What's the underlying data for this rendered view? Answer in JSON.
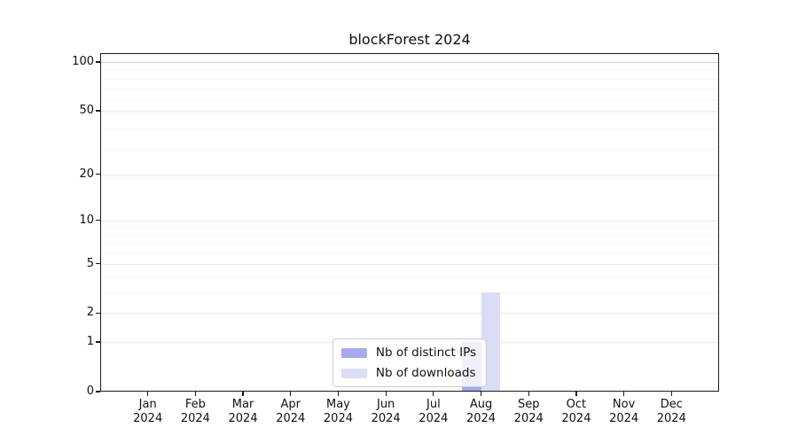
{
  "chart_data": {
    "type": "bar",
    "title": "blockForest 2024",
    "x": {
      "categories": [
        "Jan",
        "Feb",
        "Mar",
        "Apr",
        "May",
        "Jun",
        "Jul",
        "Aug",
        "Sep",
        "Oct",
        "Nov",
        "Dec"
      ],
      "year": "2024"
    },
    "series": [
      {
        "name": "Nb of distinct IPs",
        "color": "#a9a9ef",
        "values": [
          0,
          0,
          0,
          0,
          0,
          0,
          0,
          1,
          0,
          0,
          0,
          0
        ]
      },
      {
        "name": "Nb of downloads",
        "color": "#dcdcf7",
        "values": [
          0,
          0,
          0,
          0,
          0,
          0,
          0,
          3,
          0,
          0,
          0,
          0
        ]
      }
    ],
    "yaxis": {
      "scale": "log1p",
      "ticks": [
        0,
        1,
        2,
        5,
        10,
        20,
        50,
        100
      ],
      "minor_grid_at": [
        1,
        2,
        3,
        4,
        5,
        6,
        7,
        8,
        9,
        19,
        29,
        39,
        49,
        59,
        69,
        79,
        89
      ],
      "max": 113.3
    },
    "legend": {
      "position": "lower center",
      "entries": [
        "Nb of distinct IPs",
        "Nb of downloads"
      ]
    },
    "grid": "horizontal",
    "colors": {
      "spine": "#1a1a1a",
      "grid_minor": "#f5f5f5",
      "grid_major": "#e9e9e9",
      "grid_top": "#d0d0d0",
      "legend_border": "#cccccc"
    }
  }
}
